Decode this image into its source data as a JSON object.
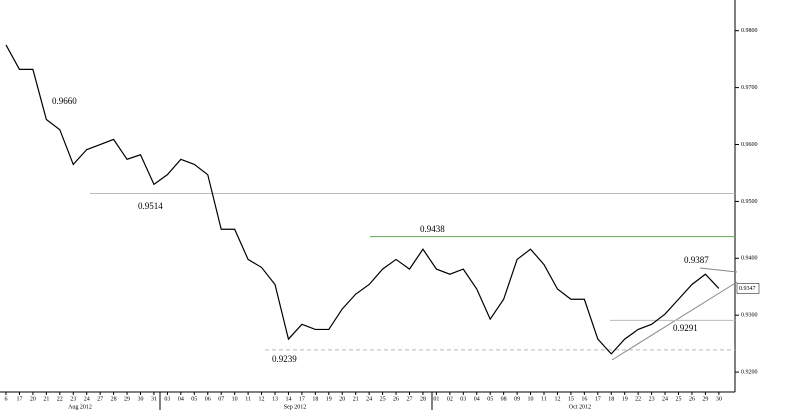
{
  "chart_data": {
    "type": "line",
    "categories": [
      "6",
      "17",
      "20",
      "21",
      "22",
      "23",
      "24",
      "27",
      "28",
      "29",
      "30",
      "31",
      "03",
      "04",
      "05",
      "06",
      "07",
      "10",
      "11",
      "12",
      "13",
      "14",
      "17",
      "18",
      "19",
      "20",
      "21",
      "24",
      "25",
      "26",
      "27",
      "28",
      "01",
      "02",
      "03",
      "04",
      "05",
      "08",
      "09",
      "10",
      "11",
      "12",
      "15",
      "16",
      "17",
      "18",
      "19",
      "22",
      "23",
      "24",
      "25",
      "26",
      "29",
      "30"
    ],
    "values": [
      0.9775,
      0.9732,
      0.9732,
      0.9644,
      0.9626,
      0.9565,
      0.9591,
      0.96,
      0.9609,
      0.9574,
      0.9582,
      0.953,
      0.9547,
      0.9574,
      0.9565,
      0.9547,
      0.9451,
      0.9451,
      0.9398,
      0.9384,
      0.9354,
      0.9258,
      0.9284,
      0.9275,
      0.9275,
      0.9311,
      0.9337,
      0.9354,
      0.9381,
      0.9398,
      0.9381,
      0.9416,
      0.9381,
      0.9372,
      0.9381,
      0.9346,
      0.9293,
      0.9328,
      0.9398,
      0.9416,
      0.9389,
      0.9346,
      0.9328,
      0.9328,
      0.9258,
      0.9232,
      0.9258,
      0.9275,
      0.9284,
      0.9302,
      0.9328,
      0.9354,
      0.9372,
      0.9347
    ],
    "color": "#000000",
    "months": [
      "Aug 2012",
      "Sep 2012",
      "Oct 2012"
    ],
    "ylim": [
      0.9165,
      0.9854
    ],
    "yticks": [
      {
        "value": 0.92,
        "label": "0.9200"
      },
      {
        "value": 0.93,
        "label": "0.9300"
      },
      {
        "value": 0.94,
        "label": "0.9400"
      },
      {
        "value": 0.95,
        "label": "0.9500"
      },
      {
        "value": 0.96,
        "label": "0.9600"
      },
      {
        "value": 0.97,
        "label": "0.9700"
      },
      {
        "value": 0.98,
        "label": "0.9800"
      }
    ],
    "last_price": {
      "value": 0.9347,
      "label": "0.9347"
    },
    "levels": [
      {
        "value": 0.966,
        "label": "0.9660",
        "color": "#000000"
      },
      {
        "value": 0.9514,
        "label": "0.9514",
        "color": "#bbbbbb"
      },
      {
        "value": 0.9438,
        "label": "0.9438",
        "color": "#66aa55"
      },
      {
        "value": 0.9239,
        "label": "0.9239",
        "color": "#bbbbbb"
      },
      {
        "value": 0.9387,
        "label": "0.9387",
        "color": "#000000"
      },
      {
        "value": 0.9291,
        "label": "0.9291",
        "color": "#bbbbbb"
      }
    ]
  }
}
